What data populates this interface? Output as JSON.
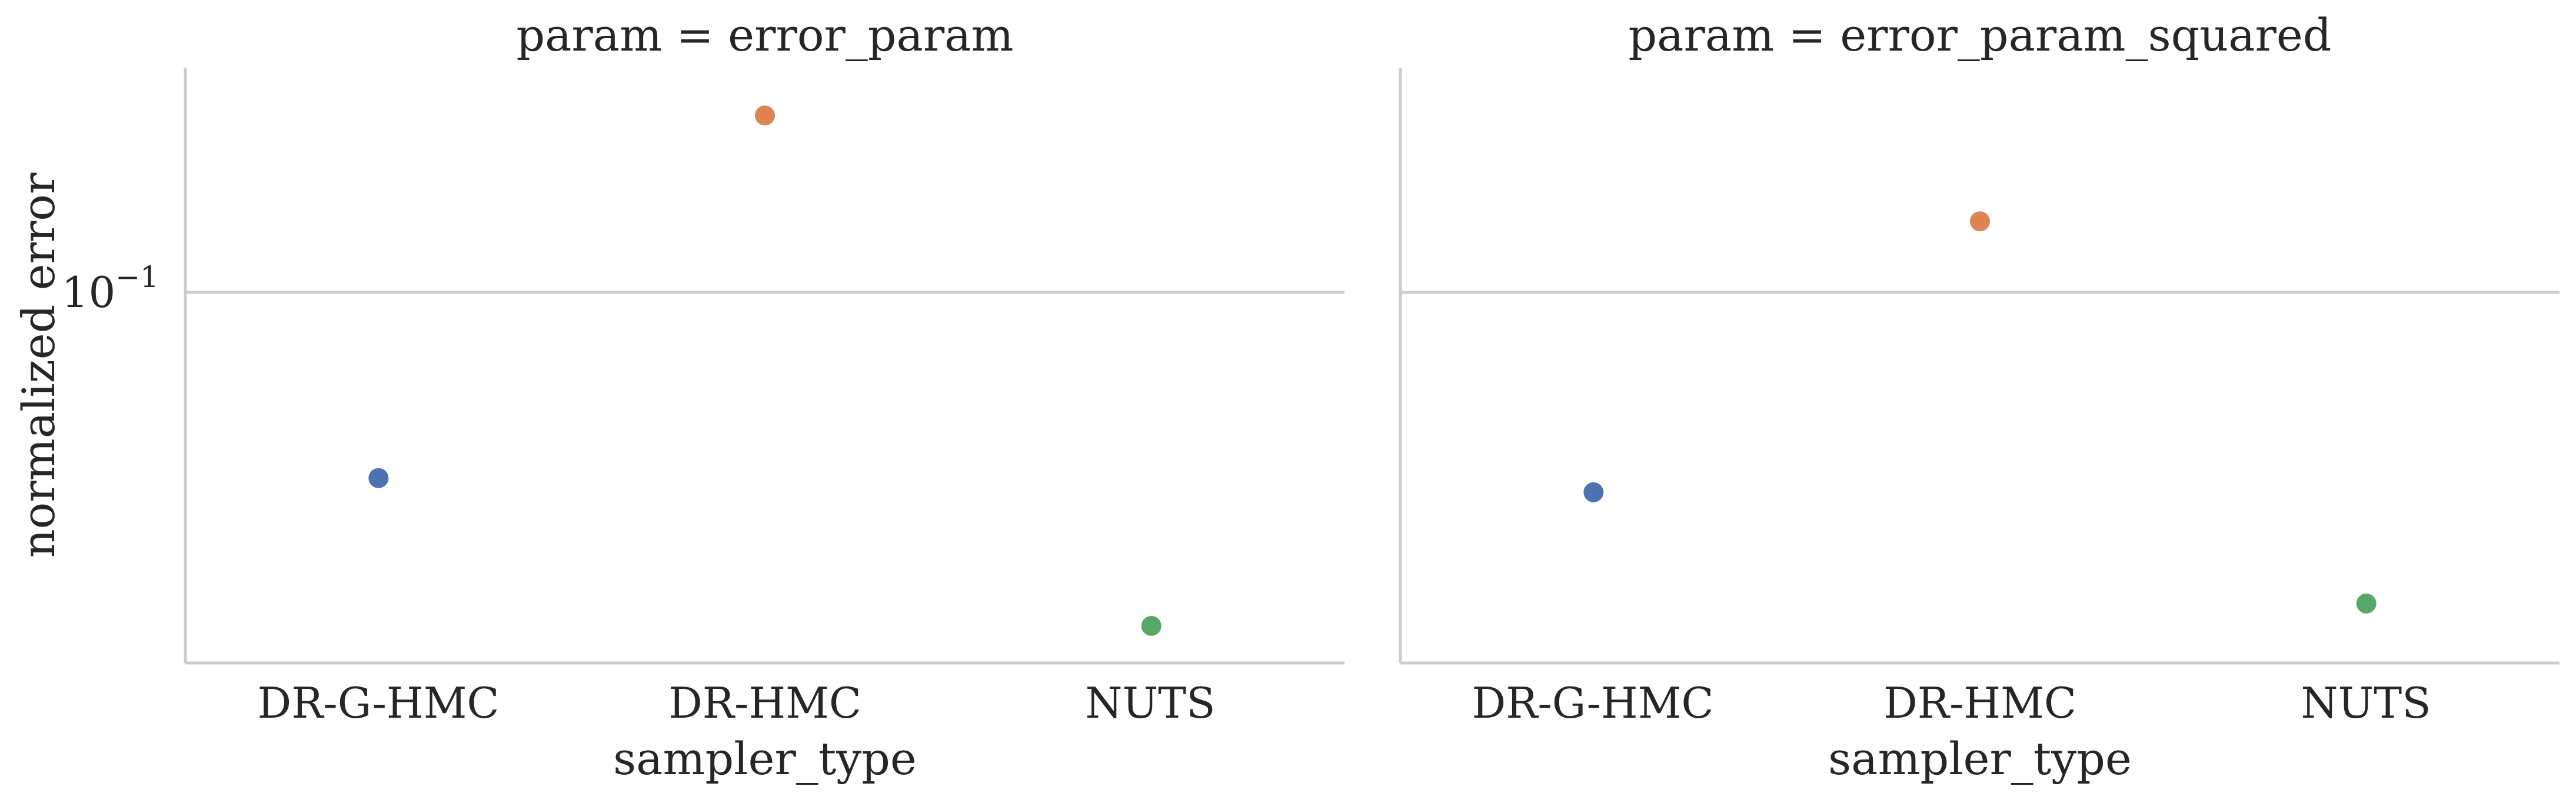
{
  "chart_data": [
    {
      "type": "scatter",
      "title": "param = error_param",
      "xlabel": "sampler_type",
      "ylabel": "normalized error",
      "yscale": "log",
      "ylim": [
        0.0325,
        0.26
      ],
      "yticks": [
        0.1
      ],
      "ytick_labels": [
        "10",
        "−1"
      ],
      "grid": "horizontal",
      "categories": [
        "DR-G-HMC",
        "DR-HMC",
        "NUTS"
      ],
      "values": [
        0.062,
        0.22,
        0.037
      ],
      "colors": [
        "#4c72b0",
        "#dd8452",
        "#55a868"
      ]
    },
    {
      "type": "scatter",
      "title": "param = error_param_squared",
      "xlabel": "sampler_type",
      "ylabel": "",
      "yscale": "log",
      "ylim": [
        0.0325,
        0.26
      ],
      "yticks": [
        0.1
      ],
      "ytick_labels": [
        "",
        ""
      ],
      "grid": "horizontal",
      "categories": [
        "DR-G-HMC",
        "DR-HMC",
        "NUTS"
      ],
      "values": [
        0.059,
        0.152,
        0.04
      ],
      "colors": [
        "#4c72b0",
        "#dd8452",
        "#55a868"
      ]
    }
  ]
}
